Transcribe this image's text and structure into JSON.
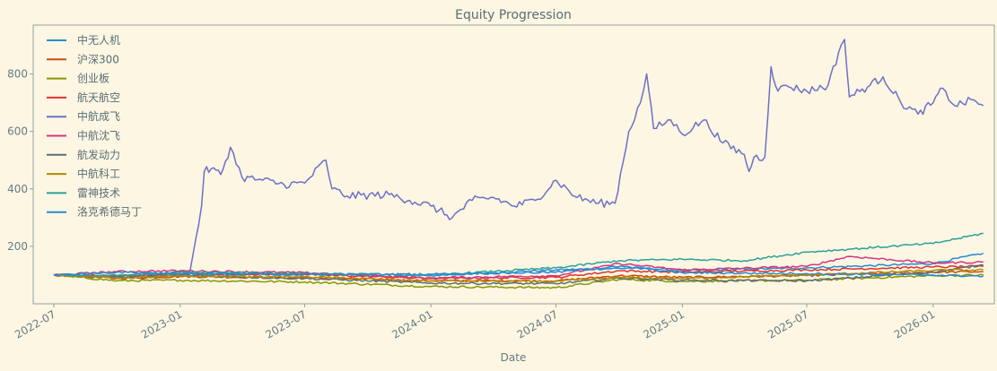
{
  "chart_data": {
    "type": "line",
    "title": "Equity Progression",
    "xlabel": "Date",
    "ylabel": "",
    "x_range": [
      "2022-06-01",
      "2026-03-31"
    ],
    "ylim": [
      0,
      970
    ],
    "x_ticks": [
      "2022-07",
      "2023-01",
      "2023-07",
      "2024-01",
      "2024-07",
      "2025-01",
      "2025-07",
      "2026-01"
    ],
    "y_ticks": [
      200,
      400,
      600,
      800
    ],
    "grid": false,
    "legend_position": "top-left",
    "colors": {
      "background": "#fdf6e3",
      "axes_edge": "#93a1a1",
      "text": "#586e75"
    },
    "series": [
      {
        "name": "中无人机",
        "color": "#268bd2",
        "points": [
          [
            "2022-07-01",
            100
          ],
          [
            "2022-10-01",
            92
          ],
          [
            "2023-01-01",
            100
          ],
          [
            "2023-07-01",
            105
          ],
          [
            "2024-01-01",
            98
          ],
          [
            "2024-07-01",
            118
          ],
          [
            "2024-11-01",
            125
          ],
          [
            "2025-01-01",
            115
          ],
          [
            "2025-07-01",
            125
          ],
          [
            "2026-01-01",
            140
          ],
          [
            "2026-03-15",
            176
          ]
        ]
      },
      {
        "name": "沪深300",
        "color": "#cb4b16",
        "points": [
          [
            "2022-07-01",
            100
          ],
          [
            "2022-10-01",
            88
          ],
          [
            "2023-01-01",
            95
          ],
          [
            "2023-07-01",
            90
          ],
          [
            "2024-01-01",
            80
          ],
          [
            "2024-07-01",
            80
          ],
          [
            "2024-10-01",
            98
          ],
          [
            "2025-01-01",
            92
          ],
          [
            "2025-07-01",
            98
          ],
          [
            "2026-01-01",
            110
          ],
          [
            "2026-03-15",
            112
          ]
        ]
      },
      {
        "name": "创业板",
        "color": "#859900",
        "points": [
          [
            "2022-07-01",
            100
          ],
          [
            "2022-10-01",
            80
          ],
          [
            "2023-01-01",
            82
          ],
          [
            "2023-07-01",
            76
          ],
          [
            "2024-01-01",
            60
          ],
          [
            "2024-07-01",
            56
          ],
          [
            "2024-10-01",
            85
          ],
          [
            "2025-01-01",
            78
          ],
          [
            "2025-07-01",
            82
          ],
          [
            "2026-01-01",
            98
          ],
          [
            "2026-03-15",
            100
          ]
        ]
      },
      {
        "name": "航天航空",
        "color": "#dc322f",
        "points": [
          [
            "2022-07-01",
            100
          ],
          [
            "2022-10-01",
            98
          ],
          [
            "2023-01-01",
            105
          ],
          [
            "2023-07-01",
            102
          ],
          [
            "2024-01-01",
            88
          ],
          [
            "2024-07-01",
            92
          ],
          [
            "2024-10-01",
            115
          ],
          [
            "2025-01-01",
            110
          ],
          [
            "2025-07-01",
            118
          ],
          [
            "2026-01-01",
            128
          ],
          [
            "2026-03-15",
            130
          ]
        ]
      },
      {
        "name": "中航成飞",
        "color": "#6c71c4",
        "points": [
          [
            "2022-07-01",
            100
          ],
          [
            "2022-09-01",
            96
          ],
          [
            "2022-12-01",
            98
          ],
          [
            "2023-01-15",
            110
          ],
          [
            "2023-02-01",
            340
          ],
          [
            "2023-02-05",
            460
          ],
          [
            "2023-02-15",
            470
          ],
          [
            "2023-03-01",
            450
          ],
          [
            "2023-03-15",
            545
          ],
          [
            "2023-04-01",
            440
          ],
          [
            "2023-05-01",
            430
          ],
          [
            "2023-06-01",
            415
          ],
          [
            "2023-07-01",
            420
          ],
          [
            "2023-08-01",
            500
          ],
          [
            "2023-08-10",
            400
          ],
          [
            "2023-09-01",
            375
          ],
          [
            "2023-11-01",
            380
          ],
          [
            "2023-12-01",
            360
          ],
          [
            "2024-01-01",
            340
          ],
          [
            "2024-02-01",
            300
          ],
          [
            "2024-03-01",
            360
          ],
          [
            "2024-04-01",
            370
          ],
          [
            "2024-05-01",
            340
          ],
          [
            "2024-06-01",
            360
          ],
          [
            "2024-07-01",
            430
          ],
          [
            "2024-08-01",
            370
          ],
          [
            "2024-09-01",
            350
          ],
          [
            "2024-09-25",
            350
          ],
          [
            "2024-10-15",
            600
          ],
          [
            "2024-11-01",
            700
          ],
          [
            "2024-11-10",
            800
          ],
          [
            "2024-11-20",
            610
          ],
          [
            "2024-12-15",
            640
          ],
          [
            "2025-01-01",
            590
          ],
          [
            "2025-02-01",
            640
          ],
          [
            "2025-03-01",
            560
          ],
          [
            "2025-04-01",
            520
          ],
          [
            "2025-04-08",
            460
          ],
          [
            "2025-04-15",
            510
          ],
          [
            "2025-05-01",
            510
          ],
          [
            "2025-05-10",
            825
          ],
          [
            "2025-05-20",
            740
          ],
          [
            "2025-06-01",
            760
          ],
          [
            "2025-07-01",
            740
          ],
          [
            "2025-08-01",
            760
          ],
          [
            "2025-08-20",
            900
          ],
          [
            "2025-08-25",
            920
          ],
          [
            "2025-09-01",
            720
          ],
          [
            "2025-10-01",
            760
          ],
          [
            "2025-10-20",
            790
          ],
          [
            "2025-11-15",
            700
          ],
          [
            "2025-12-10",
            660
          ],
          [
            "2026-01-01",
            700
          ],
          [
            "2026-01-15",
            750
          ],
          [
            "2026-02-01",
            690
          ],
          [
            "2026-03-01",
            710
          ],
          [
            "2026-03-15",
            690
          ]
        ]
      },
      {
        "name": "中航沈飞",
        "color": "#d33682",
        "points": [
          [
            "2022-07-01",
            100
          ],
          [
            "2022-10-01",
            112
          ],
          [
            "2023-01-01",
            115
          ],
          [
            "2023-07-01",
            108
          ],
          [
            "2024-01-01",
            90
          ],
          [
            "2024-07-01",
            98
          ],
          [
            "2024-10-01",
            140
          ],
          [
            "2025-01-01",
            118
          ],
          [
            "2025-07-01",
            130
          ],
          [
            "2025-09-01",
            165
          ],
          [
            "2026-01-01",
            142
          ],
          [
            "2026-03-15",
            145
          ]
        ]
      },
      {
        "name": "航发动力",
        "color": "#586e75",
        "points": [
          [
            "2022-07-01",
            100
          ],
          [
            "2022-10-01",
            95
          ],
          [
            "2023-01-01",
            98
          ],
          [
            "2023-07-01",
            88
          ],
          [
            "2024-01-01",
            72
          ],
          [
            "2024-07-01",
            70
          ],
          [
            "2024-10-01",
            90
          ],
          [
            "2025-01-01",
            82
          ],
          [
            "2025-07-01",
            80
          ],
          [
            "2026-01-01",
            110
          ],
          [
            "2026-03-15",
            135
          ]
        ]
      },
      {
        "name": "中航科工",
        "color": "#b58900",
        "points": [
          [
            "2022-07-01",
            100
          ],
          [
            "2022-10-01",
            90
          ],
          [
            "2023-01-01",
            96
          ],
          [
            "2023-07-01",
            94
          ],
          [
            "2024-01-01",
            80
          ],
          [
            "2024-07-01",
            78
          ],
          [
            "2024-10-01",
            92
          ],
          [
            "2025-01-01",
            88
          ],
          [
            "2025-07-01",
            100
          ],
          [
            "2026-01-01",
            116
          ],
          [
            "2026-03-15",
            118
          ]
        ]
      },
      {
        "name": "雷神技术",
        "color": "#2aa198",
        "points": [
          [
            "2022-07-01",
            100
          ],
          [
            "2022-10-01",
            98
          ],
          [
            "2023-01-01",
            110
          ],
          [
            "2023-07-01",
            105
          ],
          [
            "2024-01-01",
            100
          ],
          [
            "2024-07-01",
            125
          ],
          [
            "2024-10-01",
            150
          ],
          [
            "2025-01-01",
            155
          ],
          [
            "2025-04-01",
            150
          ],
          [
            "2025-07-01",
            180
          ],
          [
            "2026-01-01",
            210
          ],
          [
            "2026-03-15",
            245
          ]
        ]
      },
      {
        "name": "洛克希德马丁",
        "color": "#268bd2",
        "points": [
          [
            "2022-07-01",
            100
          ],
          [
            "2022-10-01",
            110
          ],
          [
            "2023-01-01",
            105
          ],
          [
            "2023-07-01",
            102
          ],
          [
            "2024-01-01",
            103
          ],
          [
            "2024-07-01",
            110
          ],
          [
            "2024-10-01",
            130
          ],
          [
            "2025-01-01",
            108
          ],
          [
            "2025-07-01",
            105
          ],
          [
            "2026-01-01",
            100
          ],
          [
            "2026-03-15",
            96
          ]
        ]
      }
    ]
  }
}
